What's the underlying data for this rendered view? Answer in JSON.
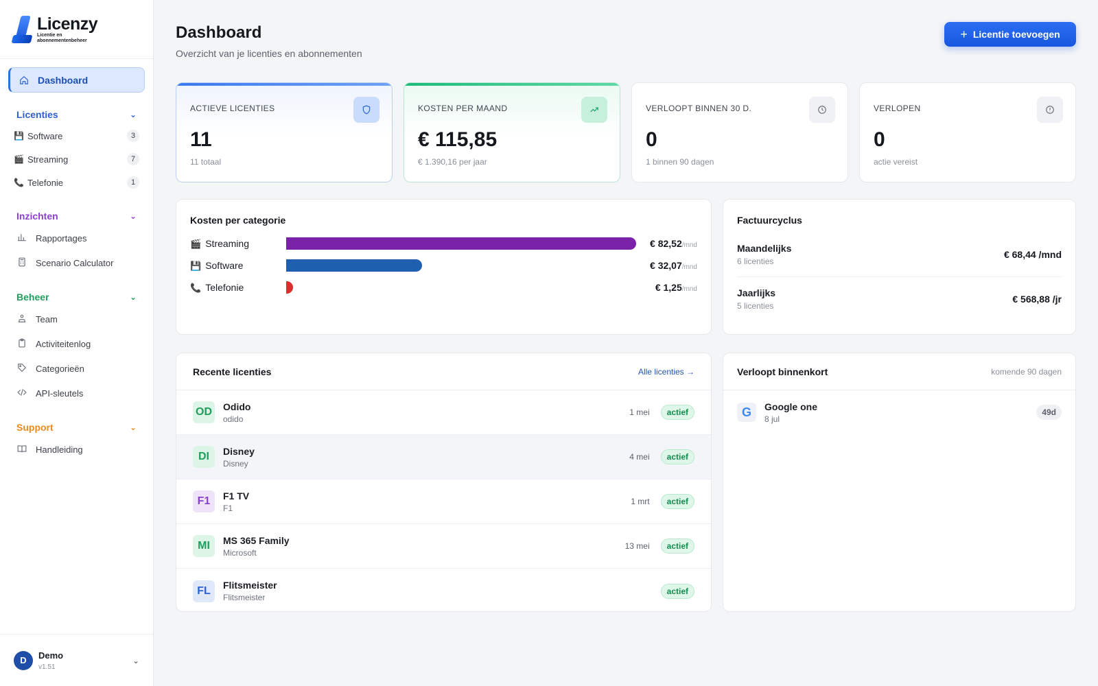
{
  "app": {
    "name": "Licenzy",
    "tagline": "Licentie en abonnementenbeheer"
  },
  "sidebar": {
    "dashboard_label": "Dashboard",
    "sections": {
      "licenties": {
        "title": "Licenties",
        "items": [
          {
            "emoji": "💾",
            "label": "Software",
            "count": "3"
          },
          {
            "emoji": "🎬",
            "label": "Streaming",
            "count": "7"
          },
          {
            "emoji": "📞",
            "label": "Telefonie",
            "count": "1"
          }
        ]
      },
      "inzichten": {
        "title": "Inzichten",
        "items": [
          {
            "label": "Rapportages"
          },
          {
            "label": "Scenario Calculator"
          }
        ]
      },
      "beheer": {
        "title": "Beheer",
        "items": [
          {
            "label": "Team"
          },
          {
            "label": "Activiteitenlog"
          },
          {
            "label": "Categorieën"
          },
          {
            "label": "API-sleutels"
          }
        ]
      },
      "support": {
        "title": "Support",
        "items": [
          {
            "label": "Handleiding"
          }
        ]
      }
    },
    "user": {
      "initial": "D",
      "name": "Demo",
      "version": "v1.51"
    }
  },
  "header": {
    "title": "Dashboard",
    "subtitle": "Overzicht van je licenties en abonnementen",
    "add_button": "Licentie toevoegen"
  },
  "stats": [
    {
      "label": "ACTIEVE LICENTIES",
      "value": "11",
      "note": "11 totaal",
      "icon": "shield-icon"
    },
    {
      "label": "KOSTEN PER MAAND",
      "value": "€ 115,85",
      "note": "€ 1.390,16 per jaar",
      "icon": "trending-up-icon"
    },
    {
      "label": "VERLOOPT BINNEN 30 D.",
      "value": "0",
      "note": "1 binnen 90 dagen",
      "icon": "clock-icon"
    },
    {
      "label": "VERLOPEN",
      "value": "0",
      "note": "actie vereist",
      "icon": "alert-circle-icon"
    }
  ],
  "categories": {
    "title": "Kosten per categorie",
    "unit": "/mnd",
    "max": 82.52,
    "items": [
      {
        "emoji": "🎬",
        "name": "Streaming",
        "value": 82.52,
        "display": "€ 82,52",
        "color": "#7a22a8"
      },
      {
        "emoji": "💾",
        "name": "Software",
        "value": 32.07,
        "display": "€ 32,07",
        "color": "#1f5fb0"
      },
      {
        "emoji": "📞",
        "name": "Telefonie",
        "value": 1.25,
        "display": "€ 1,25",
        "color": "#d8302f"
      }
    ]
  },
  "billing": {
    "title": "Factuurcyclus",
    "rows": [
      {
        "name": "Maandelijks",
        "count": "6 licenties",
        "amount": "€ 68,44 /mnd"
      },
      {
        "name": "Jaarlijks",
        "count": "5 licenties",
        "amount": "€ 568,88 /jr"
      }
    ]
  },
  "recent": {
    "title": "Recente licenties",
    "link": "Alle licenties →",
    "rows": [
      {
        "initials": "OD",
        "name": "Odido",
        "vendor": "odido",
        "date": "1 mei",
        "status": "actief",
        "fg": "#1e9e5c",
        "bg": "#dcf5e7"
      },
      {
        "initials": "DI",
        "name": "Disney",
        "vendor": "Disney",
        "date": "4 mei",
        "status": "actief",
        "fg": "#1e9e5c",
        "bg": "#dcf5e7"
      },
      {
        "initials": "F1",
        "name": "F1 TV",
        "vendor": "F1",
        "date": "1 mrt",
        "status": "actief",
        "fg": "#8b3fd1",
        "bg": "#efe3fa"
      },
      {
        "initials": "MI",
        "name": "MS 365 Family",
        "vendor": "Microsoft",
        "date": "13 mei",
        "status": "actief",
        "fg": "#1e9e5c",
        "bg": "#dcf5e7"
      },
      {
        "initials": "FL",
        "name": "Flitsmeister",
        "vendor": "Flitsmeister",
        "date": "",
        "status": "actief",
        "fg": "#2a5fd6",
        "bg": "#dfe8f8"
      }
    ]
  },
  "expiring": {
    "title": "Verloopt binnenkort",
    "hint": "komende 90 dagen",
    "rows": [
      {
        "logo": "G",
        "name": "Google one",
        "date": "8 jul",
        "days": "49d"
      }
    ]
  }
}
